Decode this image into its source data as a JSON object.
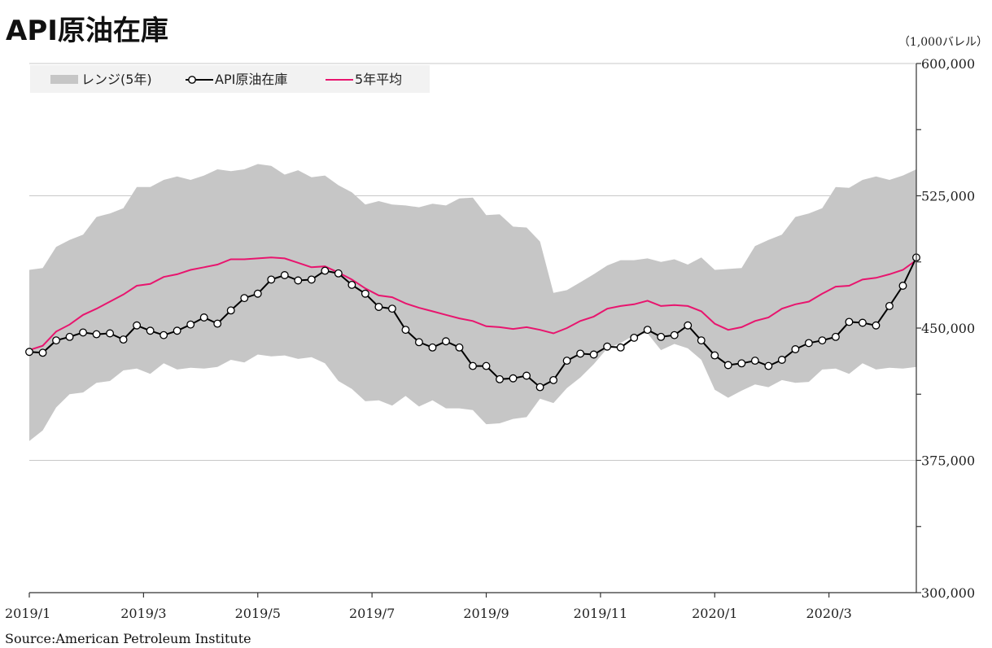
{
  "title": "API原油在庫",
  "unit": "（1,000バレル）",
  "source": "Source:American Petroleum Institute",
  "colors": {
    "range": "#c6c6c6",
    "stock": "#000000",
    "avg": "#e8156e",
    "legend_bg": "#f2f2f2",
    "grid": "#c8c8c8"
  },
  "legend": {
    "range": "レンジ(5年)",
    "stock": "API原油在庫",
    "avg": "5年平均"
  },
  "chart_data": {
    "type": "line",
    "ylim": [
      300000,
      600000
    ],
    "y_ticks": [
      "300,000",
      "375,000",
      "450,000",
      "525,000",
      "600,000"
    ],
    "y_tick_values": [
      300000,
      375000,
      450000,
      525000,
      600000
    ],
    "x_tick_labels": [
      "2019/1",
      "2019/3",
      "2019/5",
      "2019/7",
      "2019/9",
      "2019/11",
      "2020/1",
      "2020/3"
    ],
    "x_tick_weeks": [
      0,
      8.5,
      17,
      25.5,
      34,
      42.5,
      51,
      59.5
    ],
    "weeks": 66,
    "series": [
      {
        "name": "API原油在庫",
        "values": [
          436500,
          436000,
          443000,
          445000,
          447500,
          446500,
          447000,
          443500,
          451500,
          448500,
          446000,
          448500,
          452000,
          456000,
          452500,
          460000,
          467000,
          469500,
          477500,
          480000,
          477000,
          477500,
          482500,
          481000,
          474500,
          469500,
          462000,
          461000,
          449000,
          442000,
          439000,
          442500,
          439000,
          428500,
          428500,
          421000,
          421500,
          423000,
          416500,
          420500,
          431500,
          435500,
          435000,
          439500,
          439000,
          444500,
          449000,
          445000,
          446000,
          451500,
          443000,
          434500,
          429000,
          430000,
          431500,
          428500,
          432000,
          438000,
          441500,
          443000,
          445000,
          453500,
          453000,
          451500,
          462500,
          474000,
          490000
        ]
      },
      {
        "name": "5年平均",
        "values": [
          437500,
          440000,
          448000,
          452000,
          457500,
          461000,
          465000,
          469000,
          474000,
          475000,
          479000,
          480500,
          483000,
          484500,
          486000,
          489000,
          489000,
          489500,
          490000,
          489500,
          487000,
          484500,
          485000,
          481500,
          477500,
          472500,
          468500,
          467500,
          464000,
          461500,
          459500,
          457500,
          455500,
          454000,
          451000,
          450500,
          449500,
          450500,
          449000,
          447000,
          450000,
          454000,
          456500,
          461000,
          462500,
          463500,
          465500,
          462500,
          463000,
          462500,
          459500,
          452500,
          449000,
          450500,
          454000,
          456000,
          461000,
          463500,
          465000,
          469500,
          473500,
          474000,
          477500,
          478500,
          480500,
          483000,
          488500
        ]
      },
      {
        "name": "レンジ上限",
        "values": [
          483000,
          484000,
          496000,
          500000,
          503000,
          513000,
          515000,
          518000,
          530000,
          530000,
          534000,
          536000,
          534000,
          536500,
          540000,
          539000,
          540000,
          543000,
          542000,
          537000,
          539500,
          535500,
          536500,
          531000,
          527000,
          520000,
          522000,
          520000,
          519500,
          518500,
          520500,
          519500,
          523500,
          524000,
          514000,
          514500,
          507500,
          507000,
          499000,
          470000,
          471500,
          476000,
          480500,
          485500,
          488500,
          488500,
          489500,
          487500,
          489000,
          486000,
          490000,
          483000,
          483500,
          484000,
          496500,
          500000,
          503000,
          513000,
          515000,
          518000,
          530000,
          529500,
          534000,
          536000,
          534000,
          536500,
          540000
        ]
      },
      {
        "name": "レンジ下限",
        "values": [
          386000,
          392000,
          405000,
          412500,
          413500,
          419000,
          420000,
          426000,
          427000,
          424000,
          430000,
          426500,
          427500,
          427000,
          428000,
          432000,
          430500,
          435000,
          434000,
          434500,
          432500,
          433500,
          430000,
          420000,
          415500,
          408500,
          409000,
          406000,
          411500,
          405500,
          409000,
          404500,
          404500,
          403500,
          395500,
          396000,
          398500,
          399500,
          410000,
          407500,
          416000,
          422000,
          429500,
          438500,
          441500,
          446000,
          447000,
          437500,
          441000,
          438500,
          432000,
          415000,
          410500,
          414500,
          418000,
          416500,
          420500,
          419000,
          419500,
          426500,
          427000,
          424000,
          430000,
          426500,
          427500,
          427000,
          428000
        ]
      }
    ]
  }
}
